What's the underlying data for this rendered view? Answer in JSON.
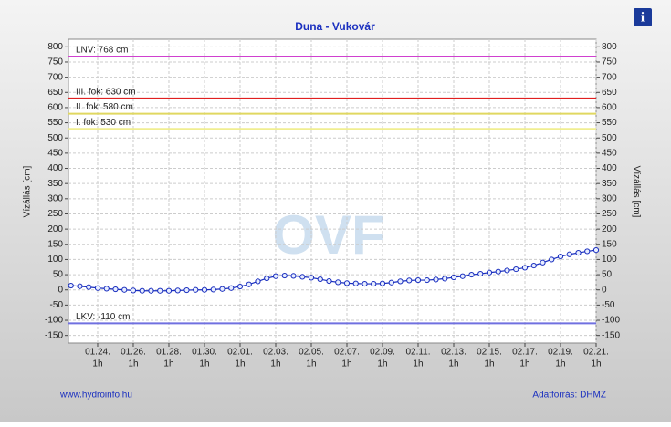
{
  "chart_data": {
    "type": "line",
    "title": "Duna - Vukovár",
    "y_label": "Vízállás [cm]",
    "y2_label": "Vízállás [cm]",
    "watermark": "OVF",
    "footer_left": "www.hydroinfo.hu",
    "footer_right": "Adatforrás: DHMZ",
    "info_icon": "i",
    "ylim": [
      -175,
      825
    ],
    "yticks": [
      -150,
      -100,
      -50,
      0,
      50,
      100,
      150,
      200,
      250,
      300,
      350,
      400,
      450,
      500,
      550,
      600,
      650,
      700,
      750,
      800
    ],
    "xlim": [
      -1.64,
      28
    ],
    "xticks": [
      {
        "value": 0,
        "label": "01.24.",
        "time": "1h"
      },
      {
        "value": 2,
        "label": "01.26.",
        "time": "1h"
      },
      {
        "value": 4,
        "label": "01.28.",
        "time": "1h"
      },
      {
        "value": 6,
        "label": "01.30.",
        "time": "1h"
      },
      {
        "value": 8,
        "label": "02.01.",
        "time": "1h"
      },
      {
        "value": 10,
        "label": "02.03.",
        "time": "1h"
      },
      {
        "value": 12,
        "label": "02.05.",
        "time": "1h"
      },
      {
        "value": 14,
        "label": "02.07.",
        "time": "1h"
      },
      {
        "value": 16,
        "label": "02.09.",
        "time": "1h"
      },
      {
        "value": 18,
        "label": "02.11.",
        "time": "1h"
      },
      {
        "value": 20,
        "label": "02.13.",
        "time": "1h"
      },
      {
        "value": 22,
        "label": "02.15.",
        "time": "1h"
      },
      {
        "value": 24,
        "label": "02.17.",
        "time": "1h"
      },
      {
        "value": 26,
        "label": "02.19.",
        "time": "1h"
      },
      {
        "value": 28,
        "label": "02.21.",
        "time": "1h"
      }
    ],
    "grid": true,
    "reference_lines": [
      {
        "label": "LNV: 768 cm",
        "value": 768,
        "color": "#d040d0"
      },
      {
        "label": "III. fok: 630 cm",
        "value": 630,
        "color": "#e02020"
      },
      {
        "label": "II. fok: 580 cm",
        "value": 580,
        "color": "#e0d860"
      },
      {
        "label": "I. fok: 530 cm",
        "value": 530,
        "color": "#f0ee90"
      },
      {
        "label": "LKV: -110 cm",
        "value": -110,
        "color": "#7070e0"
      }
    ],
    "x": [
      -1.5,
      -1,
      -0.5,
      0,
      0.5,
      1,
      1.5,
      2,
      2.5,
      3,
      3.5,
      4,
      4.5,
      5,
      5.5,
      6,
      6.5,
      7,
      7.5,
      8,
      8.5,
      9,
      9.5,
      10,
      10.5,
      11,
      11.5,
      12,
      12.5,
      13,
      13.5,
      14,
      14.5,
      15,
      15.5,
      16,
      16.5,
      17,
      17.5,
      18,
      18.5,
      19,
      19.5,
      20,
      20.5,
      21,
      21.5,
      22,
      22.5,
      23,
      23.5,
      24,
      24.5,
      25,
      25.5,
      26,
      26.5,
      27,
      27.5,
      28
    ],
    "series": [
      {
        "color": "#1a2fbf",
        "values": [
          14,
          12,
          9,
          6,
          4,
          2,
          0,
          -2,
          -3,
          -3,
          -3,
          -3,
          -2,
          -1,
          0,
          0,
          1,
          3,
          6,
          11,
          18,
          28,
          38,
          45,
          47,
          46,
          43,
          40,
          35,
          29,
          25,
          22,
          21,
          20,
          20,
          21,
          24,
          28,
          31,
          32,
          32,
          34,
          37,
          41,
          45,
          50,
          53,
          57,
          60,
          64,
          68,
          73,
          80,
          90,
          100,
          110,
          117,
          122,
          127,
          131
        ]
      }
    ]
  }
}
